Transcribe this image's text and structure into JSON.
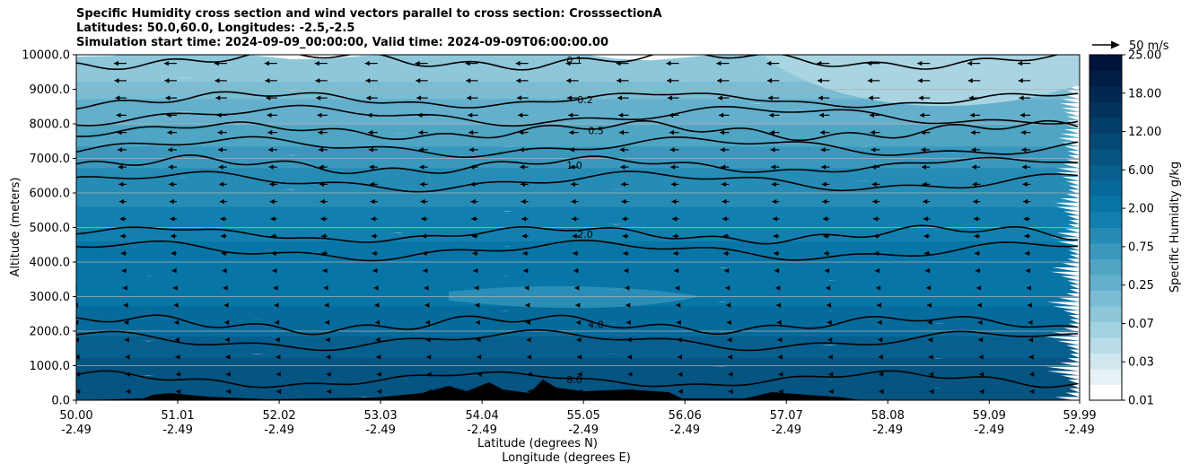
{
  "chart_data": {
    "type": "heatmap",
    "title_lines": [
      "Specific Humidity cross section and wind vectors parallel to cross section: CrosssectionA",
      "Latitudes: 50.0,60.0, Longitudes: -2.5,-2.5",
      "Simulation start time: 2024-09-09_00:00:00, Valid time: 2024-09-09T06:00:00.00"
    ],
    "ylabel": "Altitude (meters)",
    "xlabel_lines": [
      "Latitude (degrees N)",
      "Longitude (degrees E)"
    ],
    "ylim": [
      0,
      10000
    ],
    "xlim": [
      50.0,
      59.99
    ],
    "yticks": [
      "0.0",
      "1000.0",
      "2000.0",
      "3000.0",
      "4000.0",
      "5000.0",
      "6000.0",
      "7000.0",
      "8000.0",
      "9000.0",
      "10000.0"
    ],
    "xticks": [
      {
        "lat": "50.00",
        "lon": "-2.49"
      },
      {
        "lat": "51.01",
        "lon": "-2.49"
      },
      {
        "lat": "52.02",
        "lon": "-2.49"
      },
      {
        "lat": "53.03",
        "lon": "-2.49"
      },
      {
        "lat": "54.04",
        "lon": "-2.49"
      },
      {
        "lat": "55.05",
        "lon": "-2.49"
      },
      {
        "lat": "56.06",
        "lon": "-2.49"
      },
      {
        "lat": "57.07",
        "lon": "-2.49"
      },
      {
        "lat": "58.08",
        "lon": "-2.49"
      },
      {
        "lat": "59.09",
        "lon": "-2.49"
      },
      {
        "lat": "59.99",
        "lon": "-2.49"
      }
    ],
    "grid": "horizontal",
    "colorbar": {
      "label": "Specific Humidity g/kg",
      "ticks": [
        "0.01",
        "0.03",
        "0.07",
        "0.25",
        "0.75",
        "2.00",
        "6.00",
        "12.00",
        "18.00",
        "25.00"
      ],
      "colors": [
        "#ffffff",
        "#e6f2f5",
        "#d0e7ee",
        "#b9dde8",
        "#a3d2e1",
        "#8fc7da",
        "#79bcd3",
        "#64b0cc",
        "#4fa5c4",
        "#3a98bd",
        "#268cb5",
        "#1280ae",
        "#0776a6",
        "#066b9b",
        "#065f8e",
        "#055481",
        "#044974",
        "#033e68",
        "#02335d",
        "#012850",
        "#001d45",
        "#00133b"
      ]
    },
    "quiver_key": {
      "label": "50 m/s",
      "speed": 50
    },
    "contour_levels": [
      {
        "label": "0.1",
        "alt": 9850
      },
      {
        "label": "0.2",
        "alt": 8700
      },
      {
        "label": "0.5",
        "alt": 7800
      },
      {
        "label": "1.0",
        "alt": 6800
      },
      {
        "label": "2.0",
        "alt": 4800
      },
      {
        "label": "4.0",
        "alt": 2200
      },
      {
        "label": "8.0",
        "alt": 600
      }
    ],
    "humidity_profile": [
      {
        "alt": 0,
        "q": 9.0
      },
      {
        "alt": 1000,
        "q": 8.0
      },
      {
        "alt": 2000,
        "q": 5.0
      },
      {
        "alt": 3000,
        "q": 3.0
      },
      {
        "alt": 4000,
        "q": 2.2
      },
      {
        "alt": 5000,
        "q": 1.8
      },
      {
        "alt": 6000,
        "q": 1.2
      },
      {
        "alt": 7000,
        "q": 0.8
      },
      {
        "alt": 8000,
        "q": 0.4
      },
      {
        "alt": 9000,
        "q": 0.2
      },
      {
        "alt": 10000,
        "q": 0.08
      }
    ],
    "wind_profile": [
      {
        "alt": 10000,
        "u": -12
      },
      {
        "alt": 9000,
        "u": -11
      },
      {
        "alt": 8000,
        "u": -9
      },
      {
        "alt": 7000,
        "u": -8
      },
      {
        "alt": 6000,
        "u": -7
      },
      {
        "alt": 5000,
        "u": -6
      },
      {
        "alt": 4000,
        "u": -5
      },
      {
        "alt": 3000,
        "u": -3
      },
      {
        "alt": 2000,
        "u": -2
      },
      {
        "alt": 1000,
        "u": -1
      },
      {
        "alt": 0,
        "u": -0.5
      }
    ]
  }
}
